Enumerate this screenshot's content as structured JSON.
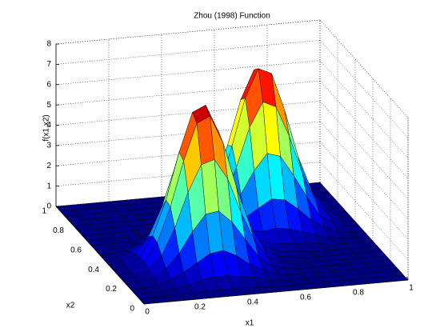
{
  "chart_data": {
    "type": "surface",
    "title": "Zhou (1998) Function",
    "xlabel": "x1",
    "ylabel": "x2",
    "zlabel": "f(x1,x2)",
    "x": [
      0,
      0.05,
      0.1,
      0.15,
      0.2,
      0.25,
      0.3,
      0.35,
      0.4,
      0.45,
      0.5,
      0.55,
      0.6,
      0.65,
      0.7,
      0.75,
      0.8,
      0.85,
      0.9,
      0.95,
      1
    ],
    "y": [
      0,
      0.05,
      0.1,
      0.15,
      0.2,
      0.25,
      0.3,
      0.35,
      0.4,
      0.45,
      0.5,
      0.55,
      0.6,
      0.65,
      0.7,
      0.75,
      0.8,
      0.85,
      0.9,
      0.95,
      1
    ],
    "z": [
      [
        0,
        0,
        0,
        0,
        0,
        0,
        0,
        0,
        0,
        0,
        0,
        0,
        0,
        0,
        0,
        0,
        0,
        0,
        0,
        0,
        0
      ],
      [
        0,
        0,
        0,
        0,
        0.1,
        0.1,
        0.1,
        0.1,
        0.1,
        0.1,
        0,
        0,
        0,
        0,
        0,
        0,
        0,
        0,
        0,
        0,
        0
      ],
      [
        0,
        0,
        0,
        0.1,
        0.2,
        0.4,
        0.5,
        0.5,
        0.4,
        0.3,
        0.1,
        0,
        0,
        0,
        0,
        0,
        0,
        0,
        0,
        0,
        0
      ],
      [
        0,
        0,
        0.1,
        0.3,
        0.6,
        1.0,
        1.4,
        1.5,
        1.2,
        0.7,
        0.4,
        0.1,
        0,
        0,
        0,
        0,
        0,
        0,
        0,
        0,
        0
      ],
      [
        0,
        0.1,
        0.2,
        0.6,
        1.3,
        2.3,
        3.1,
        3.2,
        2.6,
        1.7,
        0.8,
        0.3,
        0.1,
        0,
        0,
        0,
        0,
        0,
        0,
        0,
        0
      ],
      [
        0,
        0.1,
        0.4,
        1.0,
        2.3,
        4.0,
        5.3,
        5.5,
        4.5,
        2.8,
        1.4,
        0.5,
        0.2,
        0,
        0,
        0,
        0,
        0,
        0,
        0,
        0
      ],
      [
        0,
        0.1,
        0.5,
        1.4,
        3.1,
        5.3,
        7.1,
        7.4,
        6.0,
        3.8,
        1.9,
        0.7,
        0.2,
        0.1,
        0,
        0,
        0,
        0,
        0,
        0,
        0
      ],
      [
        0,
        0.1,
        0.5,
        1.5,
        3.2,
        5.5,
        7.4,
        7.7,
        6.3,
        4.0,
        2.0,
        0.8,
        0.3,
        0.1,
        0.1,
        0,
        0,
        0,
        0,
        0,
        0
      ],
      [
        0,
        0.1,
        0.4,
        1.2,
        2.6,
        4.5,
        6.0,
        6.3,
        5.1,
        3.2,
        1.6,
        0.7,
        0.4,
        0.3,
        0.2,
        0.2,
        0.1,
        0,
        0,
        0,
        0
      ],
      [
        0,
        0.1,
        0.3,
        0.7,
        1.7,
        2.8,
        3.8,
        4.0,
        3.2,
        2.1,
        1.2,
        0.8,
        0.7,
        0.8,
        0.7,
        0.5,
        0.3,
        0.1,
        0,
        0,
        0
      ],
      [
        0,
        0,
        0.1,
        0.4,
        0.8,
        1.4,
        1.9,
        2.0,
        1.6,
        1.2,
        1.0,
        1.2,
        1.6,
        2.0,
        1.9,
        1.4,
        0.8,
        0.4,
        0.1,
        0,
        0
      ],
      [
        0,
        0,
        0,
        0.1,
        0.3,
        0.5,
        0.7,
        0.8,
        0.7,
        0.8,
        1.2,
        2.1,
        3.2,
        4.0,
        3.8,
        2.8,
        1.7,
        0.7,
        0.3,
        0.1,
        0
      ],
      [
        0,
        0,
        0,
        0,
        0.1,
        0.2,
        0.2,
        0.3,
        0.4,
        0.7,
        1.6,
        3.2,
        5.1,
        6.3,
        6.0,
        4.5,
        2.6,
        1.2,
        0.4,
        0.1,
        0
      ],
      [
        0,
        0,
        0,
        0,
        0,
        0,
        0.1,
        0.1,
        0.3,
        0.8,
        2.0,
        4.0,
        6.3,
        7.7,
        7.4,
        5.5,
        3.2,
        1.5,
        0.5,
        0.1,
        0
      ],
      [
        0,
        0,
        0,
        0,
        0,
        0,
        0,
        0.1,
        0.2,
        0.7,
        1.9,
        3.8,
        6.0,
        7.4,
        7.1,
        5.3,
        3.1,
        1.4,
        0.5,
        0.1,
        0
      ],
      [
        0,
        0,
        0,
        0,
        0,
        0,
        0,
        0,
        0.2,
        0.5,
        1.4,
        2.8,
        4.5,
        5.5,
        5.3,
        4.0,
        2.3,
        1.0,
        0.4,
        0.1,
        0
      ],
      [
        0,
        0,
        0,
        0,
        0,
        0,
        0,
        0,
        0.1,
        0.3,
        0.8,
        1.7,
        2.6,
        3.2,
        3.1,
        2.3,
        1.3,
        0.6,
        0.2,
        0.1,
        0
      ],
      [
        0,
        0,
        0,
        0,
        0,
        0,
        0,
        0,
        0,
        0.1,
        0.4,
        0.7,
        1.2,
        1.5,
        1.4,
        1.0,
        0.6,
        0.3,
        0.1,
        0,
        0
      ],
      [
        0,
        0,
        0,
        0,
        0,
        0,
        0,
        0,
        0,
        0,
        0.1,
        0.3,
        0.4,
        0.5,
        0.5,
        0.4,
        0.2,
        0.1,
        0,
        0,
        0
      ],
      [
        0,
        0,
        0,
        0,
        0,
        0,
        0,
        0,
        0,
        0,
        0,
        0.1,
        0.1,
        0.1,
        0.1,
        0.1,
        0.1,
        0,
        0,
        0,
        0
      ],
      [
        0,
        0,
        0,
        0,
        0,
        0,
        0,
        0,
        0,
        0,
        0,
        0,
        0,
        0,
        0,
        0,
        0,
        0,
        0,
        0,
        0
      ]
    ],
    "xlim": [
      0,
      1
    ],
    "ylim": [
      0,
      1
    ],
    "zlim": [
      0,
      8
    ],
    "xticks": [
      0,
      0.2,
      0.4,
      0.6,
      0.8,
      1
    ],
    "yticks": [
      0,
      0.2,
      0.4,
      0.6,
      0.8,
      1
    ],
    "zticks": [
      0,
      1,
      2,
      3,
      4,
      5,
      6,
      7,
      8
    ],
    "grid": true,
    "colormap": "jet",
    "edgecolor": "#000000"
  }
}
